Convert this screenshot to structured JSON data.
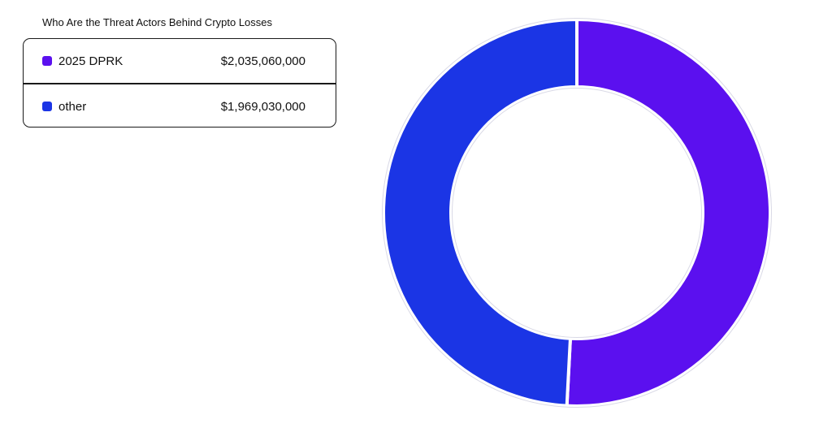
{
  "chart_data": {
    "type": "pie",
    "variant": "donut",
    "title": "Who Are the Threat Actors Behind Crypto Losses",
    "legend_position": "top-left",
    "slices": [
      {
        "label": "2025 DPRK",
        "value": 2035060000,
        "display_value": "$2,035,060,000",
        "color": "#5b10ef"
      },
      {
        "label": "other",
        "value": 1969030000,
        "display_value": "$1,969,030,000",
        "color": "#1b35e5"
      }
    ]
  }
}
